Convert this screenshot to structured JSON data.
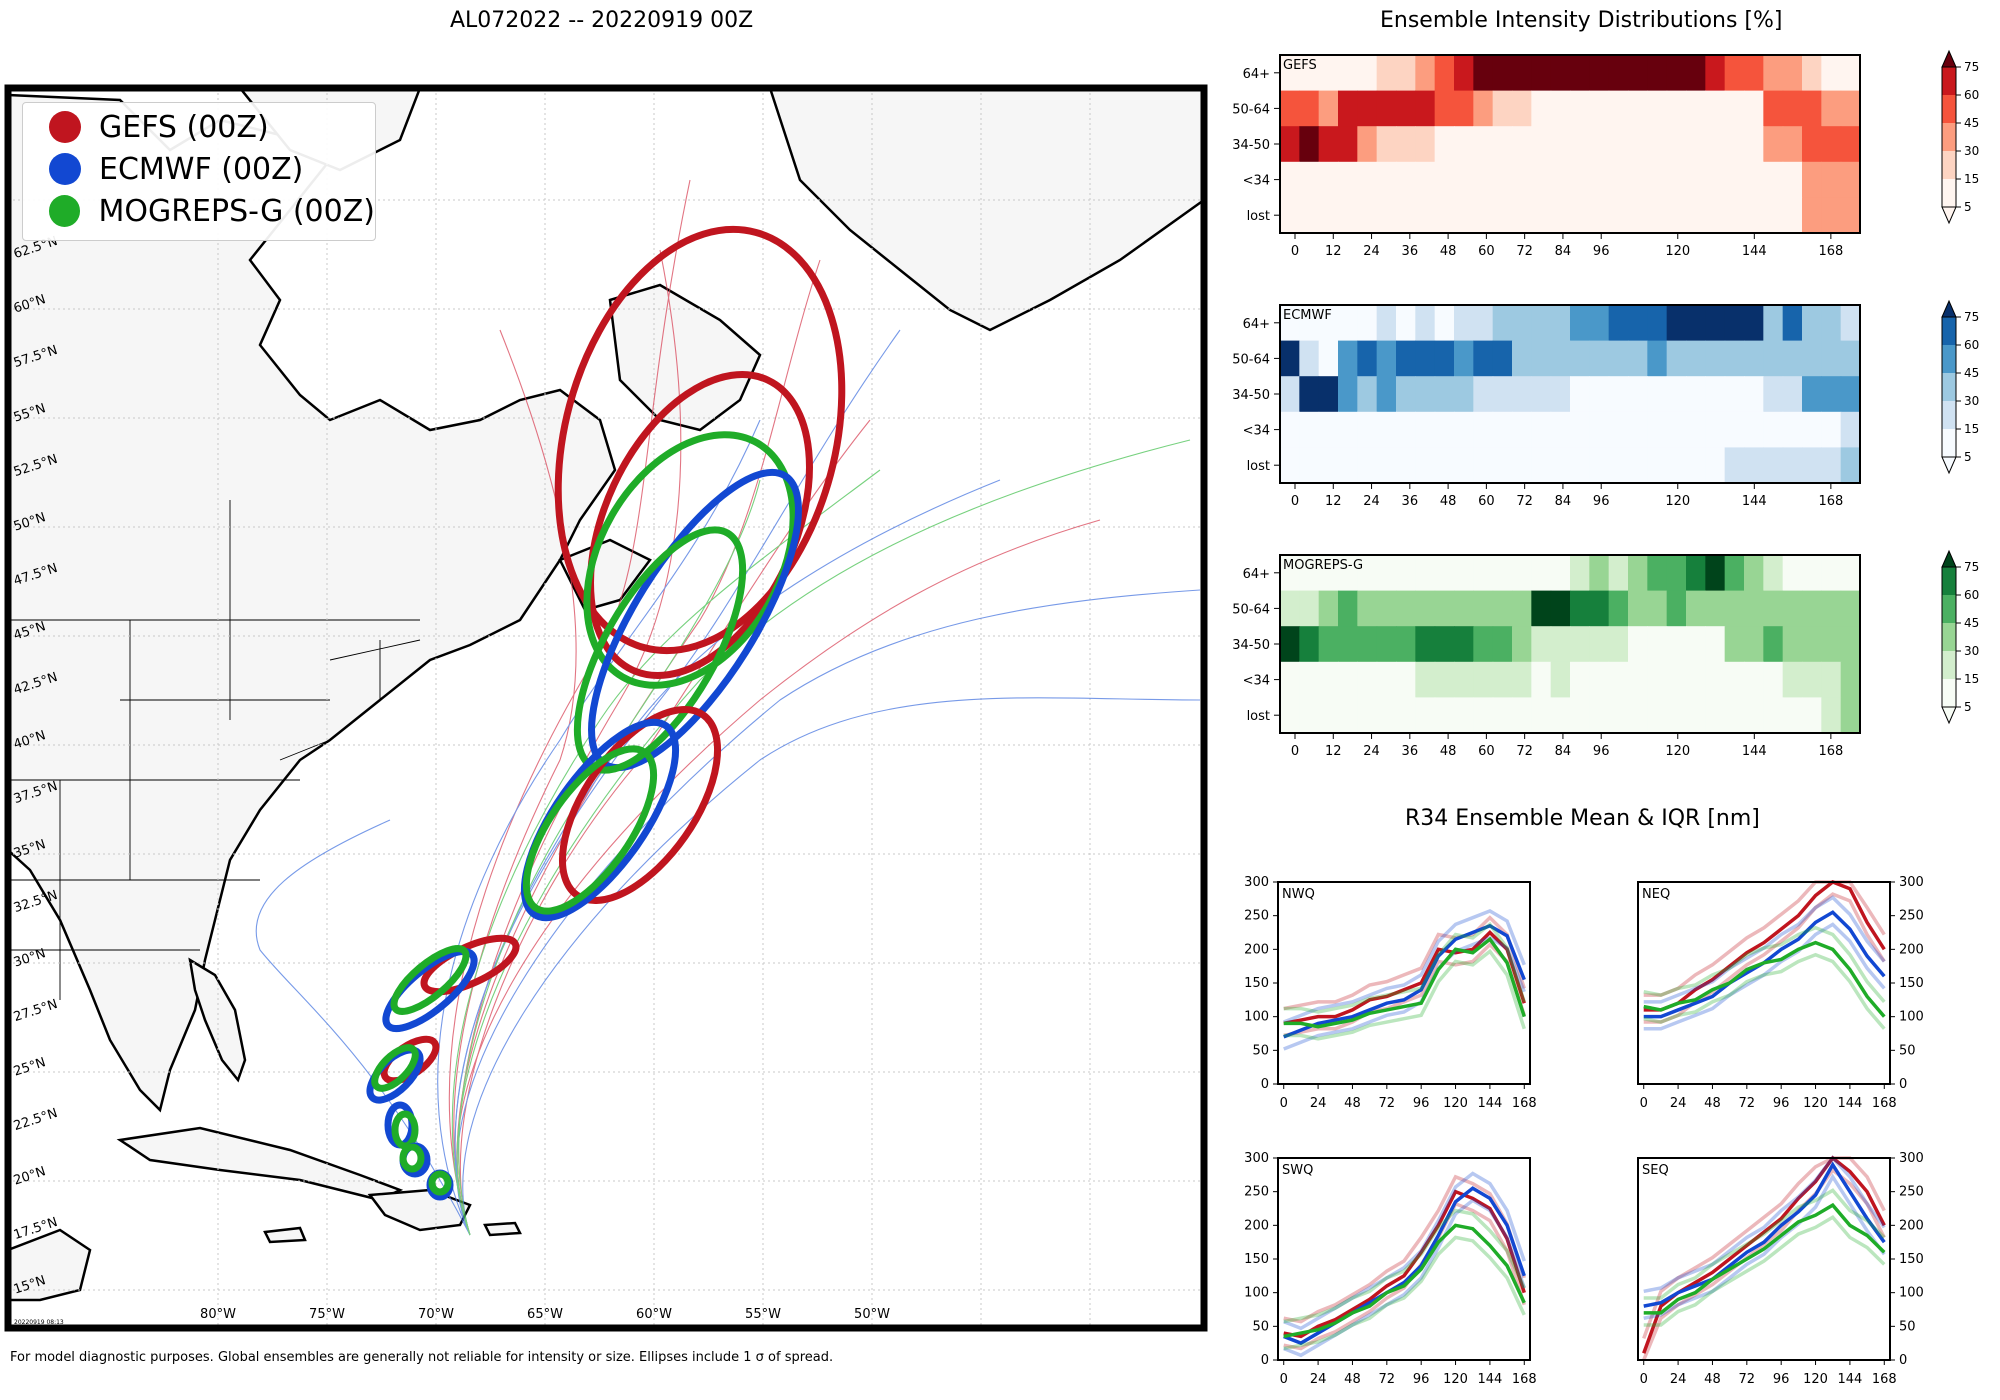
{
  "map": {
    "title": "AL072022 -- 20220919 00Z",
    "legend": [
      {
        "label": "GEFS (00Z)",
        "color": "#c0151f"
      },
      {
        "label": "ECMWF (00Z)",
        "color": "#1248d2"
      },
      {
        "label": "MOGREPS-G (00Z)",
        "color": "#1fac28"
      }
    ],
    "lat_labels": [
      "15°N",
      "17.5°N",
      "20°N",
      "22.5°N",
      "25°N",
      "27.5°N",
      "30°N",
      "32.5°N",
      "35°N",
      "37.5°N",
      "40°N",
      "42.5°N",
      "45°N",
      "47.5°N",
      "50°N",
      "52.5°N",
      "55°N",
      "57.5°N",
      "60°N",
      "62.5°N"
    ],
    "lon_labels": [
      "80°W",
      "75°W",
      "70°W",
      "65°W",
      "60°W",
      "55°W",
      "50°W"
    ],
    "stamp": "20220919 08:13",
    "footnote": "For model diagnostic purposes. Global ensembles are generally not reliable for intensity or size. Ellipses include 1 σ of spread."
  },
  "chart_data": [
    {
      "type": "heatmap",
      "title": "Ensemble Intensity Distributions [%]",
      "model": "GEFS",
      "colormap": "Reds",
      "rows": [
        "64+",
        "50-64",
        "34-50",
        "<34",
        "lost"
      ],
      "x_ticks": [
        0,
        12,
        24,
        36,
        48,
        60,
        72,
        84,
        96,
        120,
        144,
        168
      ],
      "colorbar_ticks": [
        5,
        15,
        30,
        45,
        60,
        75
      ],
      "values": [
        [
          0,
          0,
          0,
          0,
          5,
          20,
          20,
          30,
          45,
          60,
          75,
          75,
          75,
          75,
          75,
          75,
          75,
          75,
          75,
          75,
          75,
          75,
          60,
          45,
          45,
          30,
          30,
          15,
          5,
          5
        ],
        [
          45,
          45,
          30,
          60,
          60,
          60,
          60,
          60,
          45,
          45,
          30,
          15,
          15,
          5,
          5,
          5,
          5,
          5,
          5,
          5,
          5,
          5,
          5,
          5,
          5,
          45,
          45,
          45,
          30,
          30
        ],
        [
          60,
          75,
          60,
          60,
          30,
          15,
          15,
          15,
          5,
          5,
          5,
          5,
          5,
          5,
          5,
          5,
          5,
          5,
          5,
          5,
          5,
          5,
          5,
          5,
          5,
          30,
          30,
          45,
          45,
          45
        ],
        [
          5,
          5,
          5,
          5,
          5,
          5,
          5,
          5,
          5,
          5,
          5,
          5,
          5,
          5,
          5,
          5,
          5,
          5,
          5,
          5,
          5,
          5,
          5,
          5,
          5,
          5,
          5,
          30,
          30,
          30
        ],
        [
          5,
          5,
          5,
          5,
          5,
          5,
          5,
          5,
          5,
          5,
          5,
          5,
          5,
          5,
          5,
          5,
          5,
          5,
          5,
          5,
          5,
          5,
          5,
          5,
          5,
          5,
          5,
          30,
          30,
          30
        ]
      ]
    },
    {
      "type": "heatmap",
      "model": "ECMWF",
      "colormap": "Blues",
      "rows": [
        "64+",
        "50-64",
        "34-50",
        "<34",
        "lost"
      ],
      "x_ticks": [
        0,
        12,
        24,
        36,
        48,
        60,
        72,
        84,
        96,
        120,
        144,
        168
      ],
      "colorbar_ticks": [
        5,
        15,
        30,
        45,
        60,
        75
      ],
      "values": [
        [
          5,
          5,
          5,
          5,
          5,
          15,
          5,
          15,
          5,
          15,
          15,
          30,
          30,
          30,
          30,
          45,
          45,
          60,
          60,
          60,
          75,
          75,
          75,
          75,
          75,
          30,
          60,
          30,
          30,
          15
        ],
        [
          75,
          15,
          5,
          45,
          60,
          45,
          60,
          60,
          60,
          45,
          60,
          60,
          30,
          30,
          30,
          30,
          30,
          30,
          30,
          45,
          30,
          30,
          30,
          30,
          30,
          30,
          30,
          30,
          30,
          30
        ],
        [
          15,
          75,
          75,
          45,
          30,
          45,
          30,
          30,
          30,
          30,
          15,
          15,
          15,
          15,
          15,
          5,
          5,
          5,
          5,
          5,
          5,
          5,
          5,
          5,
          5,
          15,
          15,
          45,
          45,
          45
        ],
        [
          5,
          5,
          5,
          5,
          5,
          5,
          5,
          5,
          5,
          5,
          5,
          5,
          5,
          5,
          5,
          5,
          5,
          5,
          5,
          5,
          5,
          5,
          5,
          5,
          5,
          5,
          5,
          5,
          5,
          15
        ],
        [
          5,
          5,
          5,
          5,
          5,
          5,
          5,
          5,
          5,
          5,
          5,
          5,
          5,
          5,
          5,
          5,
          5,
          5,
          5,
          5,
          5,
          5,
          5,
          15,
          15,
          15,
          15,
          15,
          15,
          30
        ]
      ]
    },
    {
      "type": "heatmap",
      "model": "MOGREPS-G",
      "colormap": "Greens",
      "rows": [
        "64+",
        "50-64",
        "34-50",
        "<34",
        "lost"
      ],
      "x_ticks": [
        0,
        12,
        24,
        36,
        48,
        60,
        72,
        84,
        96,
        120,
        144,
        168
      ],
      "colorbar_ticks": [
        5,
        15,
        30,
        45,
        60,
        75
      ],
      "values": [
        [
          5,
          5,
          5,
          5,
          5,
          5,
          5,
          5,
          5,
          5,
          5,
          5,
          5,
          5,
          5,
          15,
          30,
          15,
          30,
          45,
          45,
          60,
          75,
          45,
          30,
          15,
          5,
          5,
          5,
          5
        ],
        [
          15,
          15,
          30,
          45,
          30,
          30,
          30,
          30,
          30,
          30,
          30,
          30,
          30,
          75,
          75,
          60,
          60,
          45,
          30,
          30,
          45,
          30,
          30,
          30,
          30,
          30,
          30,
          30,
          30,
          30
        ],
        [
          75,
          60,
          45,
          45,
          45,
          45,
          45,
          60,
          60,
          60,
          45,
          45,
          30,
          15,
          15,
          15,
          15,
          15,
          5,
          5,
          5,
          5,
          5,
          30,
          30,
          45,
          30,
          30,
          30,
          30
        ],
        [
          5,
          5,
          5,
          5,
          5,
          5,
          5,
          15,
          15,
          15,
          15,
          15,
          15,
          5,
          15,
          5,
          5,
          5,
          5,
          5,
          5,
          5,
          5,
          5,
          5,
          5,
          15,
          15,
          15,
          30
        ],
        [
          5,
          5,
          5,
          5,
          5,
          5,
          5,
          5,
          5,
          5,
          5,
          5,
          5,
          5,
          5,
          5,
          5,
          5,
          5,
          5,
          5,
          5,
          5,
          5,
          5,
          5,
          5,
          5,
          15,
          30
        ]
      ]
    },
    {
      "type": "line",
      "title": "R34 Ensemble Mean & IQR [nm]",
      "quadrant": "NWQ",
      "x": [
        0,
        12,
        24,
        36,
        48,
        60,
        72,
        84,
        96,
        108,
        120,
        132,
        144,
        156,
        168
      ],
      "xticks": [
        0,
        24,
        48,
        72,
        96,
        120,
        144,
        168
      ],
      "ylim": [
        0,
        300
      ],
      "yticks": [
        0,
        50,
        100,
        150,
        200,
        250,
        300
      ],
      "series": [
        {
          "model": "GEFS",
          "values": [
            90,
            95,
            100,
            100,
            110,
            125,
            130,
            140,
            150,
            200,
            195,
            200,
            225,
            200,
            120
          ]
        },
        {
          "model": "ECMWF",
          "values": [
            70,
            80,
            90,
            95,
            100,
            110,
            120,
            125,
            140,
            190,
            215,
            225,
            235,
            220,
            155
          ]
        },
        {
          "model": "MOGREPS-G",
          "values": [
            90,
            90,
            85,
            90,
            95,
            105,
            110,
            115,
            120,
            170,
            200,
            195,
            215,
            180,
            100
          ]
        }
      ]
    },
    {
      "type": "line",
      "quadrant": "NEQ",
      "x": [
        0,
        12,
        24,
        36,
        48,
        60,
        72,
        84,
        96,
        108,
        120,
        132,
        144,
        156,
        168
      ],
      "xticks": [
        0,
        24,
        48,
        72,
        96,
        120,
        144,
        168
      ],
      "ylim": [
        0,
        300
      ],
      "yticks": [
        0,
        50,
        100,
        150,
        200,
        250,
        300
      ],
      "series": [
        {
          "model": "GEFS",
          "values": [
            110,
            110,
            120,
            140,
            155,
            175,
            195,
            210,
            230,
            250,
            280,
            300,
            290,
            240,
            200
          ]
        },
        {
          "model": "ECMWF",
          "values": [
            100,
            100,
            110,
            120,
            130,
            150,
            165,
            180,
            200,
            215,
            240,
            255,
            230,
            190,
            160
          ]
        },
        {
          "model": "MOGREPS-G",
          "values": [
            115,
            110,
            120,
            125,
            140,
            150,
            170,
            180,
            185,
            200,
            210,
            200,
            170,
            130,
            100
          ]
        }
      ]
    },
    {
      "type": "line",
      "quadrant": "SWQ",
      "x": [
        0,
        12,
        24,
        36,
        48,
        60,
        72,
        84,
        96,
        108,
        120,
        132,
        144,
        156,
        168
      ],
      "xticks": [
        0,
        24,
        48,
        72,
        96,
        120,
        144,
        168
      ],
      "ylim": [
        0,
        300
      ],
      "yticks": [
        0,
        50,
        100,
        150,
        200,
        250,
        300
      ],
      "series": [
        {
          "model": "GEFS",
          "values": [
            40,
            35,
            50,
            60,
            75,
            90,
            110,
            125,
            160,
            200,
            250,
            240,
            225,
            180,
            100
          ]
        },
        {
          "model": "ECMWF",
          "values": [
            35,
            25,
            40,
            55,
            70,
            85,
            100,
            115,
            140,
            185,
            235,
            255,
            240,
            200,
            125
          ]
        },
        {
          "model": "MOGREPS-G",
          "values": [
            35,
            40,
            45,
            55,
            70,
            80,
            100,
            110,
            135,
            175,
            200,
            195,
            170,
            140,
            85
          ]
        }
      ]
    },
    {
      "type": "line",
      "quadrant": "SEQ",
      "x": [
        0,
        12,
        24,
        36,
        48,
        60,
        72,
        84,
        96,
        108,
        120,
        132,
        144,
        156,
        168
      ],
      "xticks": [
        0,
        24,
        48,
        72,
        96,
        120,
        144,
        168
      ],
      "ylim": [
        0,
        300
      ],
      "yticks": [
        0,
        50,
        100,
        150,
        200,
        250,
        300
      ],
      "series": [
        {
          "model": "GEFS",
          "values": [
            10,
            80,
            100,
            115,
            130,
            150,
            170,
            190,
            210,
            240,
            265,
            300,
            280,
            250,
            200
          ]
        },
        {
          "model": "ECMWF",
          "values": [
            80,
            85,
            100,
            110,
            120,
            140,
            160,
            175,
            200,
            220,
            245,
            290,
            250,
            210,
            175
          ]
        },
        {
          "model": "MOGREPS-G",
          "values": [
            70,
            70,
            90,
            100,
            120,
            135,
            150,
            165,
            185,
            205,
            215,
            230,
            200,
            185,
            160
          ]
        }
      ]
    }
  ]
}
